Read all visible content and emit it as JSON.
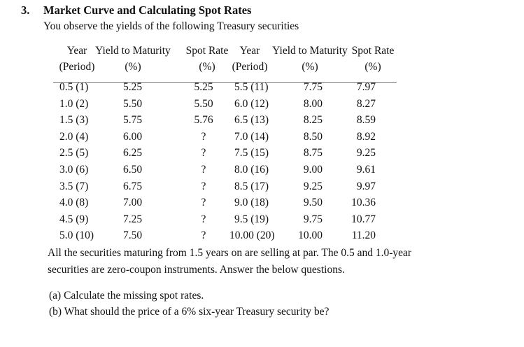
{
  "problem": {
    "number": "3.",
    "title": "Market Curve and Calculating Spot Rates",
    "intro": "You observe the yields of the following Treasury securities"
  },
  "table": {
    "headers": [
      {
        "line1": "Year",
        "line2": "(Period)"
      },
      {
        "line1": "Yield to Maturity",
        "line2": "(%)"
      },
      {
        "line1": "Spot Rate",
        "line2": "(%)"
      },
      {
        "line1": "Year",
        "line2": "(Period)"
      },
      {
        "line1": "Yield to Maturity",
        "line2": "(%)"
      },
      {
        "line1": "Spot Rate",
        "line2": "(%)"
      }
    ],
    "rows": [
      [
        "0.5 (1)",
        "5.25",
        "5.25",
        "5.5 (11)",
        "7.75",
        "7.97"
      ],
      [
        "1.0 (2)",
        "5.50",
        "5.50",
        "6.0 (12)",
        "8.00",
        "8.27"
      ],
      [
        "1.5 (3)",
        "5.75",
        "5.76",
        "6.5 (13)",
        "8.25",
        "8.59"
      ],
      [
        "2.0 (4)",
        "6.00",
        "?",
        "7.0 (14)",
        "8.50",
        "8.92"
      ],
      [
        "2.5 (5)",
        "6.25",
        "?",
        "7.5 (15)",
        "8.75",
        "9.25"
      ],
      [
        "3.0 (6)",
        "6.50",
        "?",
        "8.0 (16)",
        "9.00",
        "9.61"
      ],
      [
        "3.5 (7)",
        "6.75",
        "?",
        "8.5 (17)",
        "9.25",
        "9.97"
      ],
      [
        "4.0 (8)",
        "7.00",
        "?",
        "9.0 (18)",
        "9.50",
        "10.36"
      ],
      [
        "4.5 (9)",
        "7.25",
        "?",
        "9.5 (19)",
        "9.75",
        "10.77"
      ],
      [
        "5.0 (10)",
        "7.50",
        "?",
        "10.00 (20)",
        "10.00",
        "11.20"
      ]
    ]
  },
  "paragraph": {
    "line1": "All the securities maturing from 1.5 years on are selling at par. The 0.5 and 1.0-year",
    "line2": "securities are zero-coupon instruments. Answer the below questions."
  },
  "questions": [
    "(a) Calculate the missing spot rates.",
    "(b) What should the price of a 6% six-year Treasury security be?"
  ]
}
